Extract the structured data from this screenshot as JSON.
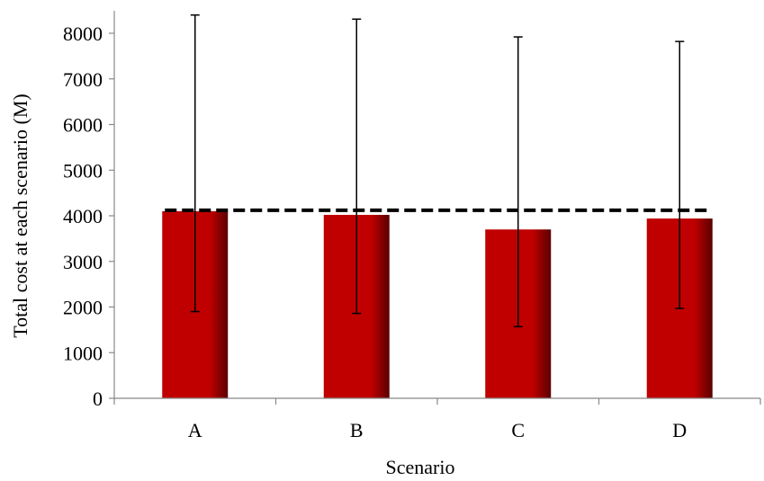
{
  "chart_data": {
    "type": "bar",
    "title": "",
    "xlabel": "Scenario",
    "ylabel": "Total cost at each scenario (M)",
    "categories": [
      "A",
      "B",
      "C",
      "D"
    ],
    "values": [
      4100,
      4020,
      3700,
      3940
    ],
    "error_bars": [
      {
        "low": 1900,
        "high": 8400
      },
      {
        "low": 1860,
        "high": 8310
      },
      {
        "low": 1570,
        "high": 7920
      },
      {
        "low": 1970,
        "high": 7820
      }
    ],
    "reference_line": {
      "value": 4120,
      "style": "dashed"
    },
    "ylim": [
      0,
      8000
    ],
    "yticks": [
      0,
      1000,
      2000,
      3000,
      4000,
      5000,
      6000,
      7000,
      8000
    ],
    "grid": false,
    "legend": "none",
    "colors": {
      "bar": "#c00000",
      "bar_shade": "#5a0000",
      "axis": "#888888",
      "errorbar": "#000000",
      "reference_line": "#000000"
    }
  }
}
